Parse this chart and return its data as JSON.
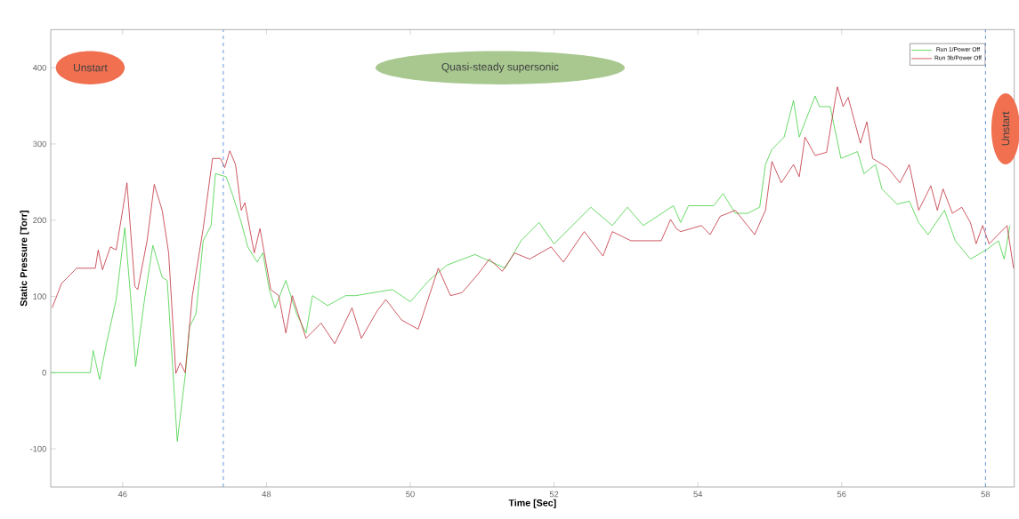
{
  "chart_data": {
    "type": "line",
    "xlabel": "Time [Sec]",
    "ylabel": "Static Pressure [Torr]",
    "annotations": [
      "Unstart",
      "Quasi-steady supersonic",
      "Unstart"
    ],
    "xlim": [
      45,
      58.4
    ],
    "ylim": [
      -150,
      450
    ],
    "xticks": [
      46,
      48,
      50,
      52,
      54,
      56,
      58
    ],
    "yticks": [
      -100,
      0,
      100,
      200,
      300,
      400
    ],
    "legend": "top right",
    "marker": "none",
    "line_style": "solid",
    "ref_lines": [
      {
        "axis": "x",
        "value": 47.4,
        "color": "#5b8fd6",
        "line_style": "dashed"
      },
      {
        "axis": "x",
        "value": 58.0,
        "color": "#5b8fd6",
        "line_style": "dashed"
      }
    ],
    "series": [
      {
        "name": "Run 1/Power Off",
        "color": "#44d044",
        "x": [
          45.0,
          45.55,
          45.59,
          45.68,
          45.77,
          45.91,
          46.03,
          46.11,
          46.18,
          46.3,
          46.42,
          46.55,
          46.62,
          46.76,
          46.87,
          46.93,
          47.02,
          47.12,
          47.23,
          47.29,
          47.44,
          47.53,
          47.65,
          47.74,
          47.87,
          47.95,
          48.04,
          48.12,
          48.27,
          48.42,
          48.55,
          48.64,
          48.85,
          49.1,
          49.24,
          49.75,
          50.0,
          50.26,
          50.51,
          50.9,
          51.32,
          51.54,
          51.79,
          52.0,
          52.34,
          52.51,
          52.81,
          53.02,
          53.24,
          53.66,
          53.76,
          53.87,
          54.22,
          54.35,
          54.52,
          54.69,
          54.86,
          54.94,
          55.03,
          55.2,
          55.33,
          55.41,
          55.63,
          55.69,
          55.84,
          55.99,
          56.22,
          56.31,
          56.47,
          56.56,
          56.77,
          56.94,
          57.07,
          57.2,
          57.43,
          57.58,
          57.79,
          58.01,
          58.18,
          58.26,
          58.34
        ],
        "values": [
          0,
          0,
          29,
          -9,
          36,
          96,
          190,
          101,
          8,
          93,
          167,
          125,
          121,
          -90,
          -4,
          60,
          77,
          173,
          193,
          261,
          257,
          233,
          197,
          165,
          145,
          157,
          109,
          85,
          121,
          77,
          52,
          101,
          88,
          101,
          101,
          109,
          93,
          121,
          141,
          155,
          137,
          173,
          197,
          169,
          201,
          217,
          193,
          217,
          193,
          219,
          197,
          219,
          219,
          235,
          209,
          209,
          217,
          273,
          293,
          309,
          357,
          309,
          363,
          349,
          349,
          281,
          290,
          261,
          273,
          241,
          221,
          225,
          197,
          181,
          213,
          173,
          149,
          161,
          173,
          149,
          193
        ]
      },
      {
        "name": "Run 3b/Power Off",
        "color": "#c0303c",
        "x": [
          45.02,
          45.15,
          45.36,
          45.62,
          45.66,
          45.72,
          45.83,
          45.91,
          46.0,
          46.06,
          46.17,
          46.21,
          46.34,
          46.44,
          46.55,
          46.64,
          46.74,
          46.8,
          46.87,
          46.97,
          47.12,
          47.25,
          47.36,
          47.42,
          47.49,
          47.57,
          47.65,
          47.7,
          47.83,
          47.91,
          48.06,
          48.17,
          48.27,
          48.36,
          48.55,
          48.76,
          48.95,
          49.19,
          49.32,
          49.54,
          49.66,
          49.88,
          50.11,
          50.39,
          50.56,
          50.72,
          50.94,
          51.1,
          51.28,
          51.45,
          51.66,
          51.96,
          52.13,
          52.42,
          52.68,
          52.81,
          53.07,
          53.49,
          53.62,
          53.7,
          53.76,
          54.05,
          54.17,
          54.31,
          54.52,
          54.79,
          54.94,
          55.03,
          55.16,
          55.33,
          55.41,
          55.49,
          55.63,
          55.79,
          55.94,
          56.02,
          56.09,
          56.26,
          56.35,
          56.43,
          56.64,
          56.81,
          56.94,
          57.07,
          57.24,
          57.33,
          57.41,
          57.54,
          57.67,
          57.79,
          57.87,
          57.96,
          58.05,
          58.3,
          58.39
        ],
        "values": [
          85,
          117,
          137,
          137,
          161,
          135,
          165,
          161,
          213,
          249,
          113,
          109,
          173,
          247,
          213,
          157,
          -1,
          13,
          0,
          101,
          189,
          281,
          281,
          269,
          291,
          273,
          213,
          223,
          157,
          189,
          109,
          101,
          52,
          101,
          45,
          65,
          38,
          85,
          45,
          81,
          96,
          69,
          57,
          137,
          101,
          105,
          129,
          149,
          133,
          157,
          149,
          165,
          145,
          185,
          153,
          185,
          173,
          173,
          201,
          189,
          185,
          193,
          181,
          205,
          213,
          181,
          213,
          277,
          249,
          273,
          257,
          309,
          285,
          289,
          375,
          349,
          361,
          301,
          329,
          281,
          269,
          249,
          273,
          213,
          245,
          213,
          241,
          209,
          217,
          197,
          169,
          193,
          169,
          193,
          137
        ]
      }
    ]
  }
}
